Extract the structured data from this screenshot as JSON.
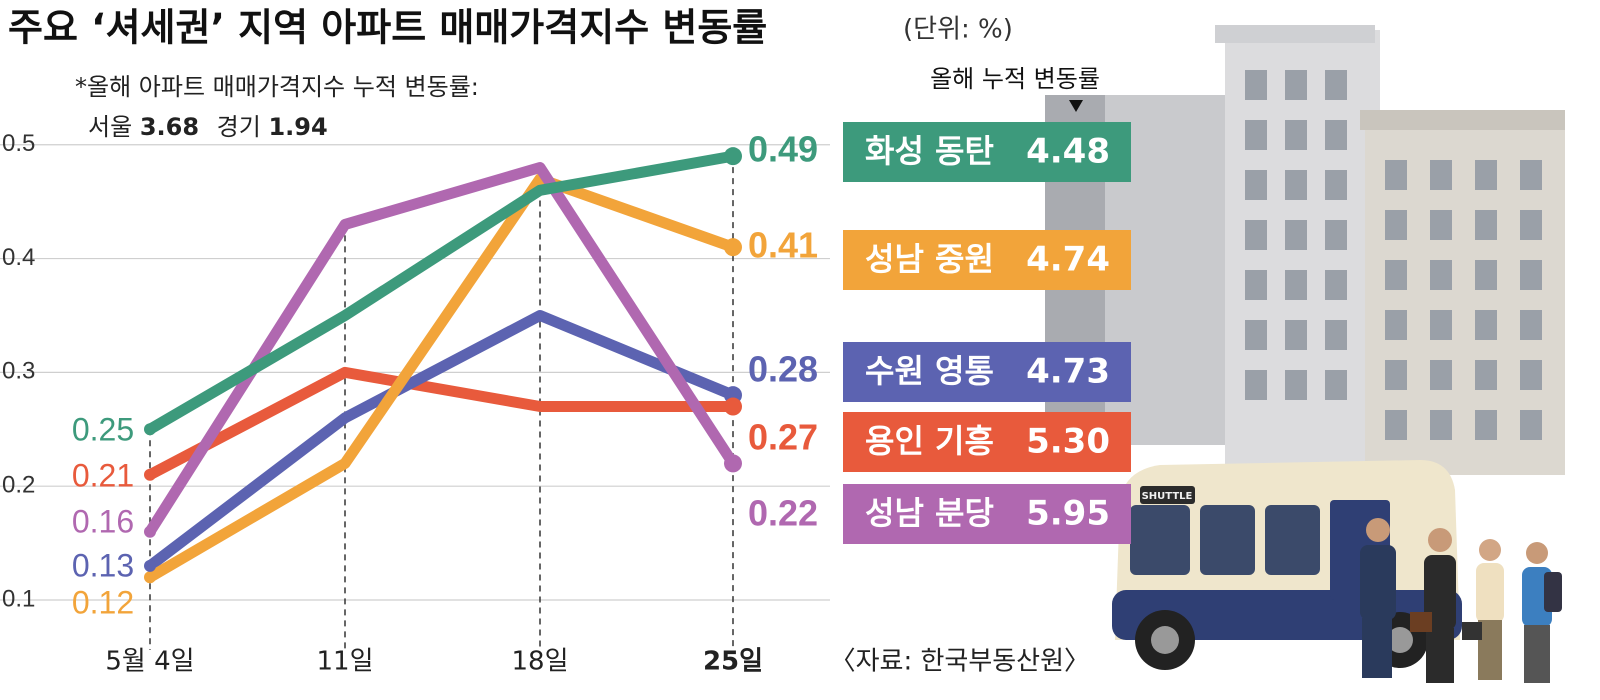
{
  "chart_data": {
    "type": "line",
    "title": "주요 ‘셔세권’ 지역 아파트 매매가격지수 변동률",
    "unit": "(단위: %)",
    "note": "*올해 아파트 매매가격지수 누적 변동률:",
    "note_items": [
      {
        "name": "서울",
        "value": 3.68
      },
      {
        "name": "경기",
        "value": 1.94
      }
    ],
    "source": "〈자료: 한국부동산원〉",
    "categories": [
      "5월 4일",
      "11일",
      "18일",
      "25일"
    ],
    "series": [
      {
        "name": "화성 동탄",
        "color": "#3d9a7c",
        "values": [
          0.25,
          0.35,
          0.46,
          0.49
        ]
      },
      {
        "name": "성남 중원",
        "color": "#f2a43a",
        "values": [
          0.12,
          0.22,
          0.47,
          0.41
        ]
      },
      {
        "name": "수원 영통",
        "color": "#5c63b1",
        "values": [
          0.13,
          0.26,
          0.35,
          0.28
        ]
      },
      {
        "name": "용인 기흥",
        "color": "#e85a3c",
        "values": [
          0.21,
          0.3,
          0.27,
          0.27
        ]
      },
      {
        "name": "성남 분당",
        "color": "#b068b0",
        "values": [
          0.16,
          0.43,
          0.48,
          0.22
        ]
      }
    ],
    "cumulative_change": {
      "title": "올해 누적 변동률",
      "values": [
        4.48,
        4.74,
        4.73,
        5.3,
        5.95
      ],
      "value_labels": [
        "4.48",
        "4.74",
        "4.73",
        "5.30",
        "5.95"
      ]
    },
    "illustration_sign": "SHUTTLE",
    "ylim": [
      0.06,
      0.52
    ],
    "yticks": [
      0.1,
      0.2,
      0.3,
      0.4,
      0.5
    ],
    "grid": true
  }
}
